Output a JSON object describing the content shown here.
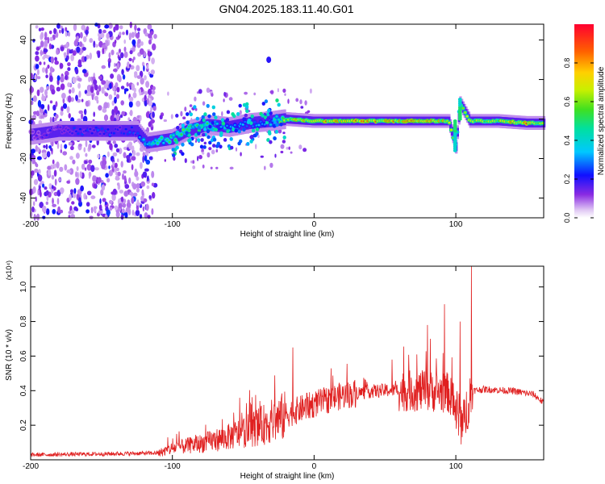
{
  "figure": {
    "title": "GN04.2025.183.11.40.G01"
  },
  "chart_data": [
    {
      "type": "heatmap",
      "title": "GN04.2025.183.11.40.G01",
      "xlabel": "Height of straight line (km)",
      "ylabel": "Frequency (Hz)",
      "xlim": [
        -200,
        162
      ],
      "ylim": [
        -50,
        48
      ],
      "x_ticks": [
        "-200",
        "-100",
        "0",
        "100"
      ],
      "x_tick_values": [
        -200,
        -100,
        0,
        100
      ],
      "y_ticks": [
        "-40",
        "-20",
        "0",
        "20",
        "40"
      ],
      "y_tick_values": [
        -40,
        -20,
        0,
        20,
        40
      ],
      "colorbar": {
        "label": "Normalized spectral amplitude",
        "range": [
          0,
          1
        ],
        "ticks": [
          "0.0",
          "0.2",
          "0.4",
          "0.6",
          "0.8"
        ],
        "tick_values": [
          0.0,
          0.2,
          0.4,
          0.6,
          0.8
        ],
        "colormap": "rainbow (purple-blue-cyan-green-yellow-orange-red)"
      },
      "ridge": [
        {
          "x": -200,
          "y": -8,
          "amp": 0.15
        },
        {
          "x": -180,
          "y": -6,
          "amp": 0.2
        },
        {
          "x": -160,
          "y": -6,
          "amp": 0.25
        },
        {
          "x": -140,
          "y": -6,
          "amp": 0.25
        },
        {
          "x": -125,
          "y": -6,
          "amp": 0.25
        },
        {
          "x": -118,
          "y": -12,
          "amp": 0.4
        },
        {
          "x": -100,
          "y": -10,
          "amp": 0.5
        },
        {
          "x": -90,
          "y": -6,
          "amp": 0.55
        },
        {
          "x": -75,
          "y": -3,
          "amp": 0.5
        },
        {
          "x": -60,
          "y": -4,
          "amp": 0.35
        },
        {
          "x": -45,
          "y": -2,
          "amp": 0.3
        },
        {
          "x": -30,
          "y": -1,
          "amp": 0.35
        },
        {
          "x": -20,
          "y": 0,
          "amp": 0.7
        },
        {
          "x": 0,
          "y": -1,
          "amp": 0.85
        },
        {
          "x": 20,
          "y": -1,
          "amp": 0.8
        },
        {
          "x": 40,
          "y": -1,
          "amp": 0.85
        },
        {
          "x": 60,
          "y": -1,
          "amp": 0.8
        },
        {
          "x": 80,
          "y": -1,
          "amp": 0.8
        },
        {
          "x": 95,
          "y": -1,
          "amp": 0.75
        },
        {
          "x": 100,
          "y": -14,
          "amp": 0.5
        },
        {
          "x": 103,
          "y": 8,
          "amp": 0.55
        },
        {
          "x": 110,
          "y": -1,
          "amp": 0.7
        },
        {
          "x": 130,
          "y": -1,
          "amp": 0.7
        },
        {
          "x": 150,
          "y": -2,
          "amp": 0.85
        },
        {
          "x": 162,
          "y": -2,
          "amp": 0.7
        }
      ],
      "isolated_feature": {
        "x": -32,
        "y": 30,
        "amp": 0.2
      }
    },
    {
      "type": "line",
      "xlabel": "Height of straight line (km)",
      "ylabel": "SNR (10 * v/v)",
      "y_multiplier": "(x10⁴)",
      "xlim": [
        -200,
        162
      ],
      "ylim": [
        0,
        1.12
      ],
      "x_ticks": [
        "-200",
        "-100",
        "0",
        "100"
      ],
      "x_tick_values": [
        -200,
        -100,
        0,
        100
      ],
      "y_ticks": [
        "0.2",
        "0.4",
        "0.6",
        "0.8",
        "1.0"
      ],
      "y_tick_values": [
        0.2,
        0.4,
        0.6,
        0.8,
        1.0
      ],
      "line_color": "#e02020",
      "envelope": {
        "x": [
          -200,
          -150,
          -110,
          -100,
          -80,
          -60,
          -40,
          -20,
          0,
          20,
          40,
          60,
          80,
          95,
          105,
          110,
          120,
          140,
          155,
          162
        ],
        "y": [
          0.03,
          0.035,
          0.04,
          0.07,
          0.1,
          0.14,
          0.2,
          0.27,
          0.33,
          0.38,
          0.4,
          0.41,
          0.41,
          0.4,
          0.2,
          0.4,
          0.41,
          0.4,
          0.38,
          0.33
        ]
      },
      "peaks": [
        {
          "x": -97,
          "y": 0.15
        },
        {
          "x": -45,
          "y": 0.33
        },
        {
          "x": -15,
          "y": 0.65
        },
        {
          "x": 55,
          "y": 0.58
        },
        {
          "x": 80,
          "y": 0.78
        },
        {
          "x": 82,
          "y": 0.7
        },
        {
          "x": 92,
          "y": 0.9
        },
        {
          "x": 103,
          "y": 0.8
        },
        {
          "x": 111,
          "y": 1.12
        }
      ]
    }
  ]
}
